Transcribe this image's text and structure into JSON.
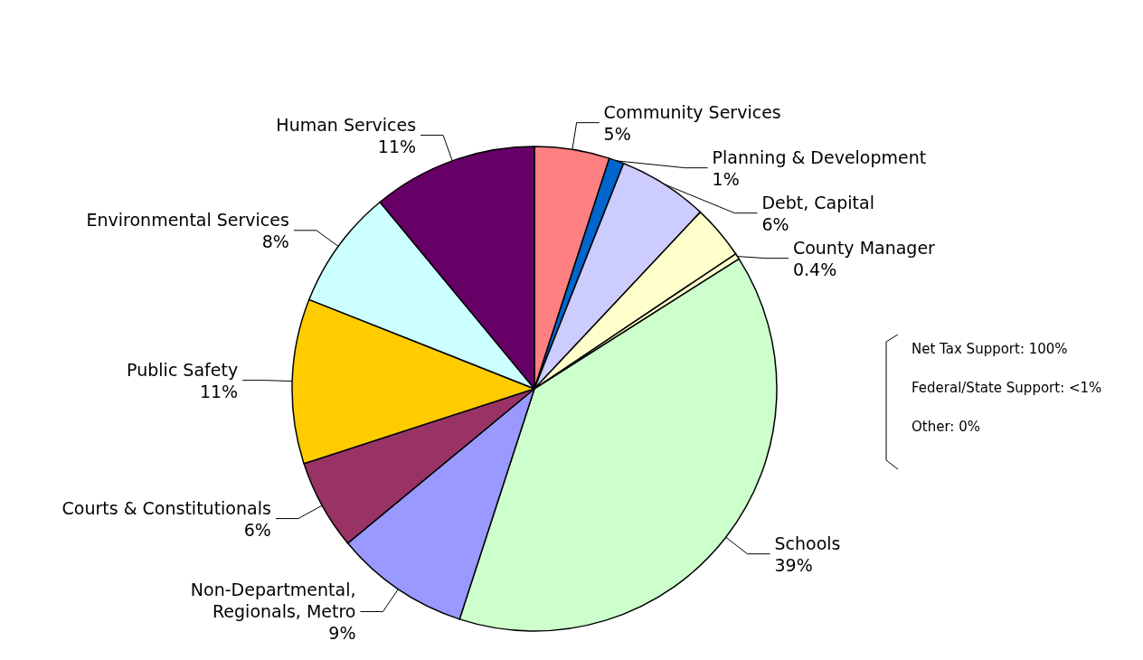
{
  "chart_data": {
    "type": "pie",
    "categories": [
      "Community Services",
      "Planning & Development",
      "Debt, Capital",
      null,
      "County Manager",
      "Schools",
      "Non-Departmental,\nRegionals, Metro",
      "Courts & Constitutionals",
      "Public Safety",
      "Environmental Services",
      "Human Services"
    ],
    "values": [
      5,
      1,
      6,
      3.6,
      0.4,
      39,
      9,
      6,
      11,
      8,
      11
    ],
    "value_labels": [
      "5%",
      "1%",
      "6%",
      null,
      "0.4%",
      "39%",
      "9%",
      "6%",
      "11%",
      "8%",
      "11%"
    ],
    "colors": [
      "#ff8080",
      "#0066cc",
      "#ccccff",
      "#ffffcc",
      "#ffffcc",
      "#ccffcc",
      "#9999ff",
      "#993366",
      "#ffcc00",
      "#ccffff",
      "#660066"
    ],
    "annotations": [
      "Net Tax Support: 100%",
      "Federal/State Support: <1%",
      "Other: 0%"
    ],
    "legend": false
  }
}
